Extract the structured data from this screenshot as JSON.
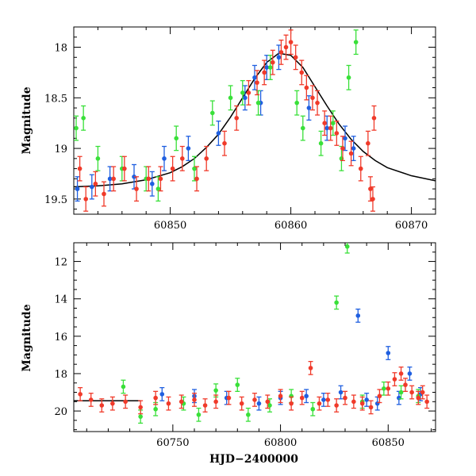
{
  "colors": {
    "blue": "#1f5fe0",
    "green": "#39e039",
    "red": "#f03a2a",
    "model": "#000000"
  },
  "chart_data": [
    {
      "type": "scatter",
      "panel": "top",
      "xlabel": "",
      "ylabel": "Magnitude",
      "xlim": [
        60842,
        60872
      ],
      "ylim": [
        19.65,
        17.8
      ],
      "y_inverted": true,
      "x_ticks": [
        60850,
        60860,
        60870
      ],
      "y_ticks": [
        18,
        18.5,
        19,
        19.5
      ],
      "model_curve": {
        "description": "smooth light curve",
        "x": [
          60842,
          60844,
          60846,
          60848,
          60850,
          60851,
          60852,
          60853,
          60854,
          60855,
          60856,
          60857,
          60858,
          60859,
          60860,
          60861,
          60862,
          60863,
          60864,
          60865,
          60866,
          60867,
          60868,
          60870,
          60872
        ],
        "y": [
          19.38,
          19.37,
          19.35,
          19.31,
          19.24,
          19.18,
          19.1,
          18.99,
          18.86,
          18.69,
          18.5,
          18.31,
          18.15,
          18.06,
          18.08,
          18.2,
          18.39,
          18.58,
          18.76,
          18.91,
          19.03,
          19.12,
          19.19,
          19.27,
          19.32
        ]
      },
      "series": [
        {
          "name": "",
          "color": "blue",
          "x": [
            60842.3,
            60843.5,
            60845.0,
            60847.0,
            60848.5,
            60849.5,
            60851.5,
            60854.0,
            60856.2,
            60857.0,
            60857.5,
            60858.0,
            60859.0,
            60861.5,
            60863.0,
            60864.5,
            60865.2
          ],
          "y": [
            19.4,
            19.38,
            19.3,
            19.28,
            19.35,
            19.1,
            19.0,
            18.85,
            18.5,
            18.3,
            18.55,
            18.2,
            18.1,
            18.6,
            18.8,
            18.9,
            19.0
          ]
        },
        {
          "name": "",
          "color": "green",
          "x": [
            60842.2,
            60842.8,
            60844.0,
            60846.0,
            60848.0,
            60849.0,
            60850.5,
            60852.0,
            60853.5,
            60855.0,
            60856.0,
            60857.3,
            60858.3,
            60860.5,
            60861.0,
            60862.5,
            60863.5,
            60864.2,
            60864.8,
            60865.4
          ],
          "y": [
            18.8,
            18.7,
            19.1,
            19.2,
            19.3,
            19.4,
            18.9,
            19.2,
            18.65,
            18.5,
            18.45,
            18.55,
            18.2,
            18.55,
            18.8,
            18.95,
            18.75,
            19.1,
            18.3,
            17.95
          ]
        },
        {
          "name": "",
          "color": "red",
          "x": [
            60842.5,
            60843.0,
            60843.8,
            60844.5,
            60845.3,
            60846.2,
            60847.2,
            60848.2,
            60849.2,
            60850.2,
            60851.0,
            60852.2,
            60853.0,
            60854.5,
            60855.5,
            60856.5,
            60857.2,
            60857.8,
            60858.5,
            60859.2,
            60859.6,
            60860.0,
            60860.4,
            60860.9,
            60861.3,
            60861.8,
            60862.2,
            60862.8,
            60863.3,
            60863.8,
            60864.3,
            60865.0,
            60865.8,
            60866.4,
            60866.6,
            60866.8,
            60866.9
          ],
          "y": [
            19.2,
            19.5,
            19.35,
            19.45,
            19.3,
            19.2,
            19.4,
            19.3,
            19.3,
            19.2,
            19.1,
            19.3,
            19.1,
            18.95,
            18.7,
            18.45,
            18.35,
            18.25,
            18.15,
            18.05,
            18.0,
            17.95,
            18.1,
            18.25,
            18.4,
            18.5,
            18.55,
            18.75,
            18.8,
            18.85,
            19.0,
            19.05,
            19.2,
            18.95,
            19.4,
            19.5,
            18.7
          ]
        }
      ]
    },
    {
      "type": "scatter",
      "panel": "bottom",
      "xlabel": "HJD−2400000",
      "ylabel": "Magnitude",
      "xlim": [
        60704,
        60872
      ],
      "ylim": [
        21.1,
        11.0
      ],
      "y_inverted": true,
      "x_ticks": [
        60750,
        60800,
        60850
      ],
      "y_ticks": [
        12,
        14,
        16,
        18,
        20
      ],
      "baseline": {
        "x": [
          60704,
          60735
        ],
        "y": 19.45
      },
      "series": [
        {
          "name": "",
          "color": "blue",
          "x": [
            60745,
            60760,
            60775,
            60790,
            60800,
            60812,
            60820,
            60828,
            60836,
            60840,
            60845,
            60850,
            60855,
            60860,
            60865
          ],
          "y": [
            19.1,
            19.2,
            19.3,
            19.6,
            19.3,
            19.2,
            19.4,
            19.0,
            14.9,
            19.4,
            19.6,
            16.9,
            19.3,
            18.0,
            19.1
          ]
        },
        {
          "name": "",
          "color": "green",
          "x": [
            60727,
            60735,
            60742,
            60755,
            60762,
            60770,
            60780,
            60785,
            60795,
            60805,
            60815,
            60826,
            60831,
            60838,
            60848,
            60856,
            60864
          ],
          "y": [
            18.7,
            20.3,
            19.9,
            19.6,
            20.2,
            18.9,
            18.6,
            20.2,
            19.7,
            19.2,
            19.9,
            14.2,
            11.2,
            19.5,
            18.8,
            19.0,
            19.2
          ]
        },
        {
          "name": "",
          "color": "red",
          "x": [
            60707,
            60712,
            60717,
            60722,
            60728,
            60735,
            60742,
            60748,
            60754,
            60760,
            60765,
            60770,
            60776,
            60782,
            60788,
            60794,
            60800,
            60805,
            60810,
            60814,
            60818,
            60822,
            60826,
            60830,
            60834,
            60838,
            60842,
            60846,
            60850,
            60853,
            60856,
            60858,
            60861,
            60864,
            60866,
            60868
          ],
          "y": [
            19.1,
            19.4,
            19.7,
            19.6,
            19.5,
            19.8,
            19.3,
            19.6,
            19.5,
            19.4,
            19.7,
            19.5,
            19.3,
            19.6,
            19.4,
            19.5,
            19.2,
            19.6,
            19.3,
            17.7,
            19.6,
            19.4,
            19.7,
            19.3,
            19.5,
            19.6,
            19.8,
            19.2,
            18.8,
            18.3,
            18.0,
            18.6,
            19.0,
            19.3,
            19.0,
            19.5
          ]
        }
      ]
    }
  ]
}
